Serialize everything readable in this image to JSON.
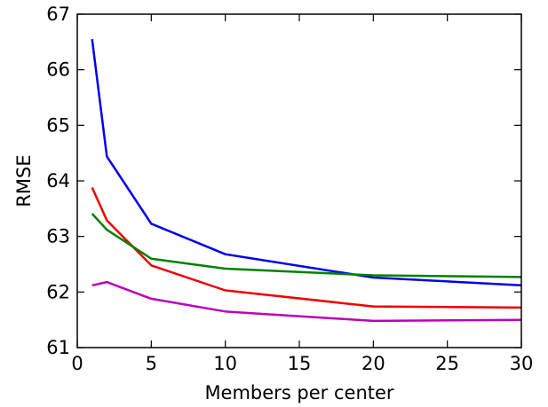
{
  "chart_data": {
    "type": "line",
    "title": "",
    "xlabel": "Members per center",
    "ylabel": "RMSE",
    "xlim": [
      0,
      30
    ],
    "ylim": [
      61,
      67
    ],
    "xticks": [
      0,
      5,
      10,
      15,
      20,
      25,
      30
    ],
    "yticks": [
      61,
      62,
      63,
      64,
      65,
      66,
      67
    ],
    "grid": false,
    "legend": "none",
    "x": [
      1,
      2,
      5,
      10,
      20,
      30
    ],
    "series": [
      {
        "color": "#0000ee",
        "values": [
          66.55,
          64.44,
          63.23,
          62.68,
          62.26,
          62.12
        ]
      },
      {
        "color": "#ee0000",
        "values": [
          63.88,
          63.29,
          62.48,
          62.03,
          61.74,
          61.72
        ]
      },
      {
        "color": "#008000",
        "values": [
          63.41,
          63.12,
          62.6,
          62.42,
          62.3,
          62.27
        ]
      },
      {
        "color": "#bb00bb",
        "values": [
          62.12,
          62.18,
          61.88,
          61.65,
          61.48,
          61.5
        ]
      }
    ]
  }
}
